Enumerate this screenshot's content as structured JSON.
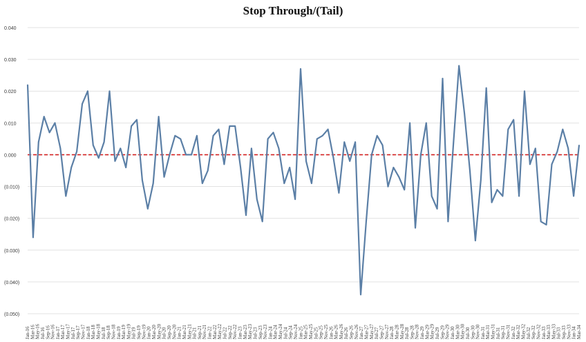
{
  "chart_data": {
    "type": "line",
    "title": "Stop Through/(Tail)",
    "xlabel": "",
    "ylabel": "",
    "ylim": [
      -0.05,
      0.04
    ],
    "yticks": [
      0.04,
      0.03,
      0.02,
      0.01,
      0.0,
      -0.01,
      -0.02,
      -0.03,
      -0.04,
      -0.05
    ],
    "ytick_labels": [
      "0.040",
      "0.030",
      "0.020",
      "0.010",
      "0.000",
      "(0.010)",
      "(0.020)",
      "(0.030)",
      "(0.040)",
      "(0.050)"
    ],
    "xtick_labels": [
      "Jan-16",
      "Mar-16",
      "May-16",
      "Jul-16",
      "Sep-16",
      "Nov-16",
      "Jan-17",
      "Mar-17",
      "May-17",
      "Jul-17",
      "Sep-17",
      "Nov-17",
      "Jan-18",
      "Mar-18",
      "May-18",
      "Jul-18",
      "Sep-18",
      "Nov-18",
      "Jan-19",
      "Mar-19",
      "May-19",
      "Jul-19",
      "Sep-19",
      "Nov-19",
      "Jan-20",
      "Mar-20",
      "May-20",
      "Jul-20",
      "Sep-20",
      "Nov-20",
      "Jan-21",
      "Mar-21",
      "May-21",
      "Jul-21",
      "Sep-21",
      "Nov-21",
      "Jan-22",
      "Mar-22",
      "May-22",
      "Jul-22",
      "Sep-22",
      "Nov-22",
      "Jan-23",
      "Mar-23",
      "May-23",
      "Jul-23",
      "Sep-23",
      "Nov-23",
      "Jan-24",
      "Mar-24",
      "May-24",
      "Jul-24",
      "Sep-24",
      "Nov-24",
      "Jan-25",
      "Mar-25",
      "May-25",
      "Jul-25",
      "Sep-25",
      "Nov-25",
      "Jan-26",
      "Mar-26",
      "May-26",
      "Jul-26",
      "Sep-26",
      "Nov-26",
      "Jan-27",
      "Mar-27",
      "May-27",
      "Jul-27",
      "Sep-27",
      "Nov-27",
      "Jan-28",
      "Mar-28",
      "May-28",
      "Jul-28",
      "Sep-28",
      "Nov-28",
      "Jan-29",
      "Mar-29",
      "May-29",
      "Jul-29",
      "Sep-29",
      "Nov-29",
      "Jan-30",
      "Mar-30",
      "May-30",
      "Jul-30",
      "Sep-30",
      "Nov-30",
      "Jan-31",
      "Mar-31",
      "May-31",
      "Jul-31",
      "Sep-31",
      "Nov-31",
      "Jan-32",
      "Mar-32",
      "May-32",
      "Jul-32",
      "Sep-32",
      "Nov-32",
      "Jan-33",
      "Mar-33",
      "May-33",
      "Jul-33",
      "Sep-33",
      "Nov-33",
      "Jan-34",
      "Mar-34"
    ],
    "zero_line": {
      "value": 0.0,
      "color": "#d42020",
      "style": "dashed"
    },
    "grid": true,
    "series": [
      {
        "color": "#5b7fa6",
        "values": [
          0.022,
          -0.026,
          0.004,
          0.012,
          0.007,
          0.01,
          0.002,
          -0.013,
          -0.004,
          0.001,
          0.016,
          0.02,
          0.003,
          -0.001,
          0.004,
          0.02,
          -0.002,
          0.002,
          -0.004,
          0.009,
          0.011,
          -0.008,
          -0.017,
          -0.009,
          0.012,
          -0.007,
          0.0,
          0.006,
          0.005,
          0.0,
          0.0,
          0.006,
          -0.009,
          -0.005,
          0.006,
          0.008,
          -0.003,
          0.009,
          0.009,
          -0.004,
          -0.019,
          0.002,
          -0.014,
          -0.021,
          0.005,
          0.007,
          0.002,
          -0.009,
          -0.004,
          -0.014,
          0.027,
          -0.002,
          -0.009,
          0.005,
          0.006,
          0.008,
          -0.001,
          -0.012,
          0.004,
          -0.002,
          0.004,
          -0.044,
          -0.021,
          0.0,
          0.006,
          0.003,
          -0.01,
          -0.004,
          -0.007,
          -0.011,
          0.01,
          -0.023,
          0.0,
          0.01,
          -0.013,
          -0.017,
          0.024,
          -0.021,
          0.004,
          0.028,
          0.013,
          -0.005,
          -0.027,
          -0.008,
          0.021,
          -0.015,
          -0.011,
          -0.013,
          0.008,
          0.011,
          -0.013,
          0.02,
          -0.003,
          0.002,
          -0.021,
          -0.022,
          -0.003,
          0.001,
          0.008,
          0.002,
          -0.013,
          0.003
        ]
      }
    ]
  }
}
